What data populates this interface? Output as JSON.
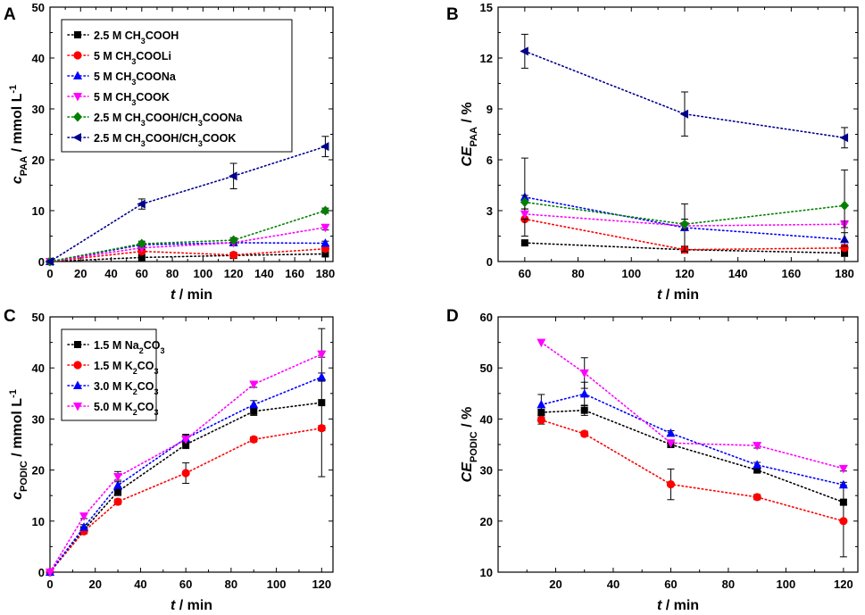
{
  "chart_data": [
    {
      "panel": "A",
      "type": "scatter",
      "xlabel": {
        "italic": "t",
        "rest": " / min"
      },
      "ylabel": {
        "italic": "c",
        "sub": "PAA",
        "rest": " / mmol L",
        "sup": "-1"
      },
      "xlim": [
        0,
        185
      ],
      "ylim": [
        0,
        50
      ],
      "xticks": [
        0,
        20,
        40,
        60,
        80,
        100,
        120,
        140,
        160,
        180
      ],
      "yticks": [
        0,
        10,
        20,
        30,
        40,
        50
      ],
      "legend": {
        "position": "top-left"
      },
      "series": [
        {
          "name": "2.5 M CH3COOH",
          "label": [
            [
              "2.5 M CH",
              ""
            ],
            [
              "3",
              "sub"
            ],
            [
              "COOH",
              ""
            ]
          ],
          "color": "#000000",
          "marker": "square",
          "x": [
            0,
            60,
            120,
            180
          ],
          "y": [
            0,
            0.8,
            1.2,
            1.5
          ],
          "err": [
            0,
            0,
            0.3,
            0.3
          ]
        },
        {
          "name": "5 M CH3COOLi",
          "label": [
            [
              "5 M CH",
              ""
            ],
            [
              "3",
              "sub"
            ],
            [
              "COOLi",
              ""
            ]
          ],
          "color": "#ff0000",
          "marker": "circle",
          "x": [
            0,
            60,
            120,
            180
          ],
          "y": [
            0,
            2.0,
            1.3,
            2.5
          ],
          "err": [
            0,
            0,
            0.3,
            0.3
          ]
        },
        {
          "name": "5 M CH3COONa",
          "label": [
            [
              "5 M CH",
              ""
            ],
            [
              "3",
              "sub"
            ],
            [
              "COONa",
              ""
            ]
          ],
          "color": "#0000ff",
          "marker": "triangle-up",
          "x": [
            0,
            60,
            120,
            180
          ],
          "y": [
            0,
            3.3,
            3.7,
            3.6
          ],
          "err": [
            0,
            0.4,
            0.4,
            0.4
          ]
        },
        {
          "name": "5 M CH3COOK",
          "label": [
            [
              "5 M CH",
              ""
            ],
            [
              "3",
              "sub"
            ],
            [
              "COOK",
              ""
            ]
          ],
          "color": "#ff00ff",
          "marker": "triangle-down",
          "x": [
            0,
            60,
            120,
            180
          ],
          "y": [
            0,
            2.7,
            3.7,
            6.7
          ],
          "err": [
            0,
            0.3,
            0.4,
            0.5
          ]
        },
        {
          "name": "2.5 M CH3COOH/CH3COONa",
          "label": [
            [
              "2.5 M CH",
              ""
            ],
            [
              "3",
              "sub"
            ],
            [
              "COOH/CH",
              ""
            ],
            [
              "3",
              "sub"
            ],
            [
              "COONa",
              ""
            ]
          ],
          "color": "#008000",
          "marker": "diamond",
          "x": [
            0,
            60,
            120,
            180
          ],
          "y": [
            0,
            3.5,
            4.2,
            10.0
          ],
          "err": [
            0,
            0.5,
            0.5,
            0.5
          ]
        },
        {
          "name": "2.5 M CH3COOH/CH3COOK",
          "label": [
            [
              "2.5 M CH",
              ""
            ],
            [
              "3",
              "sub"
            ],
            [
              "COOH/CH",
              ""
            ],
            [
              "3",
              "sub"
            ],
            [
              "COOK",
              ""
            ]
          ],
          "color": "#00008b",
          "marker": "triangle-left",
          "x": [
            0,
            60,
            120,
            180
          ],
          "y": [
            0,
            11.3,
            16.8,
            22.6
          ],
          "err": [
            0,
            1.0,
            2.5,
            2.0
          ]
        }
      ]
    },
    {
      "panel": "B",
      "type": "scatter",
      "xlabel": {
        "italic": "t",
        "rest": " / min"
      },
      "ylabel": {
        "italic": "CE",
        "sub": "PAA",
        "rest": " / %",
        "sup": ""
      },
      "xlim": [
        50,
        185
      ],
      "ylim": [
        0,
        15
      ],
      "xticks": [
        60,
        80,
        100,
        120,
        140,
        160,
        180
      ],
      "yticks": [
        0,
        3,
        6,
        9,
        12,
        15
      ],
      "legend": null,
      "series": [
        {
          "name": "2.5 M CH3COOH",
          "color": "#000000",
          "marker": "square",
          "x": [
            60,
            120,
            180
          ],
          "y": [
            1.1,
            0.7,
            0.5
          ],
          "err": [
            0,
            0.2,
            0.2
          ]
        },
        {
          "name": "5 M CH3COOLi",
          "color": "#ff0000",
          "marker": "circle",
          "x": [
            60,
            120,
            180
          ],
          "y": [
            2.5,
            0.7,
            0.8
          ],
          "err": [
            0,
            0.2,
            0.2
          ]
        },
        {
          "name": "5 M CH3COONa",
          "color": "#0000ff",
          "marker": "triangle-up",
          "x": [
            60,
            120,
            180
          ],
          "y": [
            3.8,
            2.0,
            1.3
          ],
          "err": [
            2.3,
            1.4,
            0.4
          ]
        },
        {
          "name": "5 M CH3COOK",
          "color": "#ff00ff",
          "marker": "triangle-down",
          "x": [
            60,
            120,
            180
          ],
          "y": [
            2.8,
            2.1,
            2.2
          ],
          "err": [
            0.3,
            0.2,
            0.2
          ]
        },
        {
          "name": "2.5 M CH3COOH/CH3COONa",
          "color": "#008000",
          "marker": "diamond",
          "x": [
            60,
            120,
            180
          ],
          "y": [
            3.5,
            2.2,
            3.3
          ],
          "err": [
            0.4,
            0.3,
            2.1
          ]
        },
        {
          "name": "2.5 M CH3COOH/CH3COOK",
          "color": "#00008b",
          "marker": "triangle-left",
          "x": [
            60,
            120,
            180
          ],
          "y": [
            12.4,
            8.7,
            7.3
          ],
          "err": [
            1.0,
            1.3,
            0.6
          ]
        }
      ]
    },
    {
      "panel": "C",
      "type": "scatter",
      "xlabel": {
        "italic": "t",
        "rest": " / min"
      },
      "ylabel": {
        "italic": "c",
        "sub": "PODIC",
        "rest": " / mmol L",
        "sup": "-1"
      },
      "xlim": [
        0,
        125
      ],
      "ylim": [
        0,
        50
      ],
      "xticks": [
        0,
        20,
        40,
        60,
        80,
        100,
        120
      ],
      "yticks": [
        0,
        10,
        20,
        30,
        40,
        50
      ],
      "legend": {
        "position": "top-left"
      },
      "series": [
        {
          "name": "1.5 M Na2CO3",
          "label": [
            [
              "1.5 M Na",
              ""
            ],
            [
              "2",
              "sub"
            ],
            [
              "CO",
              ""
            ],
            [
              "3",
              "sub"
            ]
          ],
          "color": "#000000",
          "marker": "square",
          "x": [
            0,
            15,
            30,
            60,
            90,
            120
          ],
          "y": [
            0,
            8.3,
            15.8,
            25.0,
            31.5,
            33.2
          ],
          "err": [
            0,
            0.5,
            0.8,
            0.8,
            0.8,
            14.5
          ]
        },
        {
          "name": "1.5 M K2CO3",
          "label": [
            [
              "1.5 M K",
              ""
            ],
            [
              "2",
              "sub"
            ],
            [
              "CO",
              ""
            ],
            [
              "3",
              "sub"
            ]
          ],
          "color": "#ff0000",
          "marker": "circle",
          "x": [
            0,
            15,
            30,
            60,
            90,
            120
          ],
          "y": [
            0,
            8.0,
            13.8,
            19.4,
            26.0,
            28.2
          ],
          "err": [
            0,
            0.5,
            0.5,
            2.0,
            0.5,
            0.5
          ]
        },
        {
          "name": "3.0 M K2CO3",
          "label": [
            [
              "3.0 M K",
              ""
            ],
            [
              "2",
              "sub"
            ],
            [
              "CO",
              ""
            ],
            [
              "3",
              "sub"
            ]
          ],
          "color": "#0000ff",
          "marker": "triangle-up",
          "x": [
            0,
            15,
            30,
            60,
            90,
            120
          ],
          "y": [
            0,
            8.8,
            17.0,
            26.2,
            32.8,
            38.2
          ],
          "err": [
            0,
            0.5,
            1.0,
            0.8,
            0.8,
            0.8
          ]
        },
        {
          "name": "5.0 M K2CO3",
          "label": [
            [
              "5.0 M K",
              ""
            ],
            [
              "2",
              "sub"
            ],
            [
              "CO",
              ""
            ],
            [
              "3",
              "sub"
            ]
          ],
          "color": "#ff00ff",
          "marker": "triangle-down",
          "x": [
            0,
            15,
            30,
            60,
            90,
            120
          ],
          "y": [
            0,
            11.0,
            18.7,
            26.0,
            36.8,
            42.7
          ],
          "err": [
            0,
            0.5,
            1.0,
            0.8,
            0.6,
            0.6
          ]
        }
      ]
    },
    {
      "panel": "D",
      "type": "scatter",
      "xlabel": {
        "italic": "t",
        "rest": " / min"
      },
      "ylabel": {
        "italic": "CE",
        "sub": "PODIC",
        "rest": " / %",
        "sup": ""
      },
      "xlim": [
        0,
        125
      ],
      "ylim": [
        10,
        60
      ],
      "xticks": [
        20,
        40,
        60,
        80,
        100,
        120
      ],
      "yticks": [
        10,
        20,
        30,
        40,
        50,
        60
      ],
      "legend": null,
      "series": [
        {
          "name": "1.5 M Na2CO3",
          "color": "#000000",
          "marker": "square",
          "x": [
            15,
            30,
            60,
            90,
            120
          ],
          "y": [
            41.3,
            41.7,
            35.0,
            30.0,
            23.7
          ],
          "err": [
            1.0,
            1.0,
            0.5,
            0.5,
            0.5
          ]
        },
        {
          "name": "1.5 M K2CO3",
          "color": "#ff0000",
          "marker": "circle",
          "x": [
            15,
            30,
            60,
            90,
            120
          ],
          "y": [
            39.8,
            37.1,
            27.2,
            24.7,
            20.0
          ],
          "err": [
            0.8,
            0.5,
            3.0,
            0.5,
            7.0
          ]
        },
        {
          "name": "3.0 M K2CO3",
          "color": "#0000ff",
          "marker": "triangle-up",
          "x": [
            15,
            30,
            60,
            90,
            120
          ],
          "y": [
            42.8,
            44.9,
            37.2,
            31.0,
            27.1
          ],
          "err": [
            2.0,
            2.3,
            0.5,
            0.5,
            0.5
          ]
        },
        {
          "name": "5.0 M K2CO3",
          "color": "#ff00ff",
          "marker": "triangle-down",
          "x": [
            15,
            30,
            60,
            90,
            120
          ],
          "y": [
            55.0,
            49.0,
            35.3,
            34.8,
            30.3
          ],
          "err": [
            0,
            3.0,
            0.5,
            0.5,
            0.5
          ]
        }
      ]
    }
  ]
}
